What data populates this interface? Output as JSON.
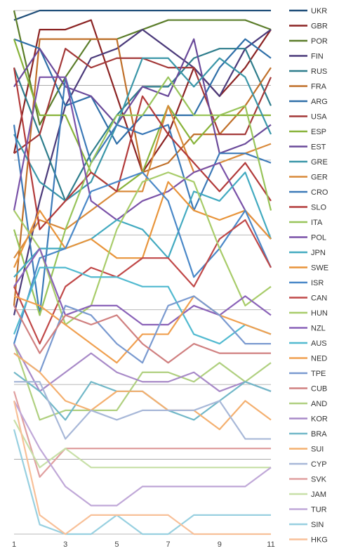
{
  "chart_data": {
    "type": "line",
    "title": "",
    "xlabel": "",
    "ylabel": "",
    "x": [
      1,
      2,
      3,
      4,
      5,
      6,
      7,
      8,
      9,
      10,
      11
    ],
    "x_tick_labels": [
      "1",
      "3",
      "5",
      "7",
      "9",
      "11"
    ],
    "y_rank_range": [
      1,
      35
    ],
    "y_inverted": true,
    "grid": "horizontal",
    "legend_position": "right",
    "series": [
      {
        "name": "UKR",
        "color": "#1f4e79",
        "values": [
          2,
          1,
          1,
          1,
          1,
          1,
          1,
          1,
          1,
          1,
          1
        ]
      },
      {
        "name": "GBR",
        "color": "#8b2323",
        "values": [
          16,
          3,
          3,
          2,
          10,
          18,
          14,
          7,
          10,
          7,
          3
        ]
      },
      {
        "name": "POR",
        "color": "#5b7d2a",
        "values": [
          1,
          13,
          8,
          4,
          4,
          3,
          2,
          2,
          2,
          2,
          3
        ]
      },
      {
        "name": "FIN",
        "color": "#4b3a7a",
        "values": [
          33,
          21,
          11,
          6,
          5,
          3,
          5,
          7,
          10,
          5,
          3
        ]
      },
      {
        "name": "RUS",
        "color": "#2e7d8c",
        "values": [
          7,
          14,
          21,
          16,
          12,
          9,
          9,
          6,
          5,
          5,
          11
        ]
      },
      {
        "name": "FRA",
        "color": "#c0702a",
        "values": [
          32,
          4,
          4,
          4,
          4,
          18,
          17,
          14,
          14,
          11,
          7
        ]
      },
      {
        "name": "ARG",
        "color": "#2f6fa8",
        "values": [
          4,
          5,
          11,
          10,
          15,
          12,
          12,
          12,
          7,
          4,
          6
        ]
      },
      {
        "name": "USA",
        "color": "#a33838",
        "values": [
          16,
          14,
          5,
          7,
          6,
          6,
          7,
          7,
          14,
          14,
          8
        ]
      },
      {
        "name": "ESP",
        "color": "#88b33a",
        "values": [
          4,
          12,
          12,
          18,
          20,
          18,
          11,
          15,
          12,
          12,
          12
        ]
      },
      {
        "name": "EST",
        "color": "#6a4a9a",
        "values": [
          9,
          5,
          9,
          10,
          13,
          9,
          10,
          4,
          16,
          15,
          13
        ]
      },
      {
        "name": "GRE",
        "color": "#3a96a8",
        "values": [
          14,
          19,
          21,
          19,
          13,
          6,
          6,
          9,
          6,
          8,
          14
        ]
      },
      {
        "name": "GER",
        "color": "#d98a3a",
        "values": [
          27,
          23,
          24,
          22,
          20,
          20,
          11,
          18,
          17,
          16,
          15
        ]
      },
      {
        "name": "CRO",
        "color": "#3c7ab8",
        "values": [
          13,
          33,
          8,
          17,
          13,
          14,
          13,
          22,
          16,
          16,
          17
        ]
      },
      {
        "name": "SLO",
        "color": "#b23a3a",
        "values": [
          7,
          24,
          21,
          18,
          20,
          10,
          14,
          17,
          20,
          17,
          21
        ]
      },
      {
        "name": "ITA",
        "color": "#98c45a",
        "values": [
          24,
          33,
          24,
          17,
          12,
          12,
          8,
          12,
          12,
          11,
          22
        ]
      },
      {
        "name": "POL",
        "color": "#7a52a8",
        "values": [
          22,
          8,
          8,
          21,
          23,
          21,
          20,
          18,
          17,
          22,
          25
        ]
      },
      {
        "name": "JPN",
        "color": "#42aac0",
        "values": [
          29,
          26,
          26,
          25,
          23,
          24,
          27,
          20,
          21,
          18,
          25
        ]
      },
      {
        "name": "SWE",
        "color": "#e8943a",
        "values": [
          28,
          22,
          26,
          25,
          27,
          27,
          19,
          22,
          23,
          22,
          25
        ]
      },
      {
        "name": "ISR",
        "color": "#4a88c8",
        "values": [
          36,
          27,
          26,
          20,
          19,
          18,
          21,
          29,
          26,
          22,
          28
        ]
      },
      {
        "name": "CAN",
        "color": "#c04848",
        "values": [
          30,
          36,
          30,
          28,
          29,
          27,
          27,
          30,
          25,
          23,
          28
        ]
      },
      {
        "name": "HUN",
        "color": "#a8cc6a",
        "values": [
          22,
          26,
          34,
          32,
          24,
          19,
          18,
          19,
          26,
          32,
          30
        ]
      },
      {
        "name": "NZL",
        "color": "#8a62b8",
        "values": [
          30,
          26,
          33,
          32,
          32,
          34,
          34,
          32,
          33,
          31,
          33
        ]
      },
      {
        "name": "AUS",
        "color": "#52bad0",
        "values": [
          35,
          28,
          28,
          29,
          29,
          30,
          30,
          35,
          36,
          34,
          35
        ]
      },
      {
        "name": "NED",
        "color": "#f0a050",
        "values": [
          31,
          32,
          34,
          36,
          38,
          35,
          35,
          31,
          33,
          34,
          35
        ]
      },
      {
        "name": "TPE",
        "color": "#7a9ad0",
        "values": [
          37,
          39,
          32,
          33,
          36,
          38,
          32,
          31,
          33,
          36,
          36
        ]
      },
      {
        "name": "CUB",
        "color": "#d08080",
        "values": [
          32,
          37,
          33,
          34,
          33,
          36,
          38,
          36,
          37,
          37,
          37
        ]
      },
      {
        "name": "AND",
        "color": "#b0d080",
        "values": [
          36,
          44,
          43,
          43,
          43,
          39,
          39,
          40,
          38,
          40,
          38
        ]
      },
      {
        "name": "KOR",
        "color": "#a88ac8",
        "values": [
          36,
          41,
          39,
          37,
          39,
          40,
          40,
          39,
          41,
          40,
          41
        ]
      },
      {
        "name": "BRA",
        "color": "#72b8c8",
        "values": [
          39,
          41,
          44,
          40,
          41,
          41,
          43,
          44,
          42,
          40,
          41
        ]
      },
      {
        "name": "SUI",
        "color": "#f4b070",
        "values": [
          37,
          39,
          42,
          43,
          41,
          41,
          43,
          43,
          45,
          42,
          44
        ]
      },
      {
        "name": "CYP",
        "color": "#a8b8d8",
        "values": [
          40,
          40,
          46,
          43,
          44,
          43,
          43,
          43,
          42,
          46,
          46
        ]
      },
      {
        "name": "SVK",
        "color": "#e0a0a0",
        "values": [
          41,
          50,
          47,
          47,
          47,
          47,
          47,
          47,
          47,
          47,
          47
        ]
      },
      {
        "name": "JAM",
        "color": "#c8e0a8",
        "values": [
          44,
          49,
          47,
          49,
          49,
          49,
          49,
          49,
          49,
          49,
          49
        ]
      },
      {
        "name": "TUR",
        "color": "#c0a8d8",
        "values": [
          42,
          47,
          51,
          53,
          53,
          51,
          51,
          51,
          51,
          51,
          49
        ]
      },
      {
        "name": "SIN",
        "color": "#98d0e0",
        "values": [
          45,
          55,
          56,
          56,
          54,
          56,
          56,
          54,
          54,
          54,
          54
        ]
      },
      {
        "name": "HKG",
        "color": "#f8c098",
        "values": [
          42,
          54,
          56,
          54,
          54,
          54,
          54,
          56,
          56,
          56,
          56
        ]
      }
    ]
  }
}
